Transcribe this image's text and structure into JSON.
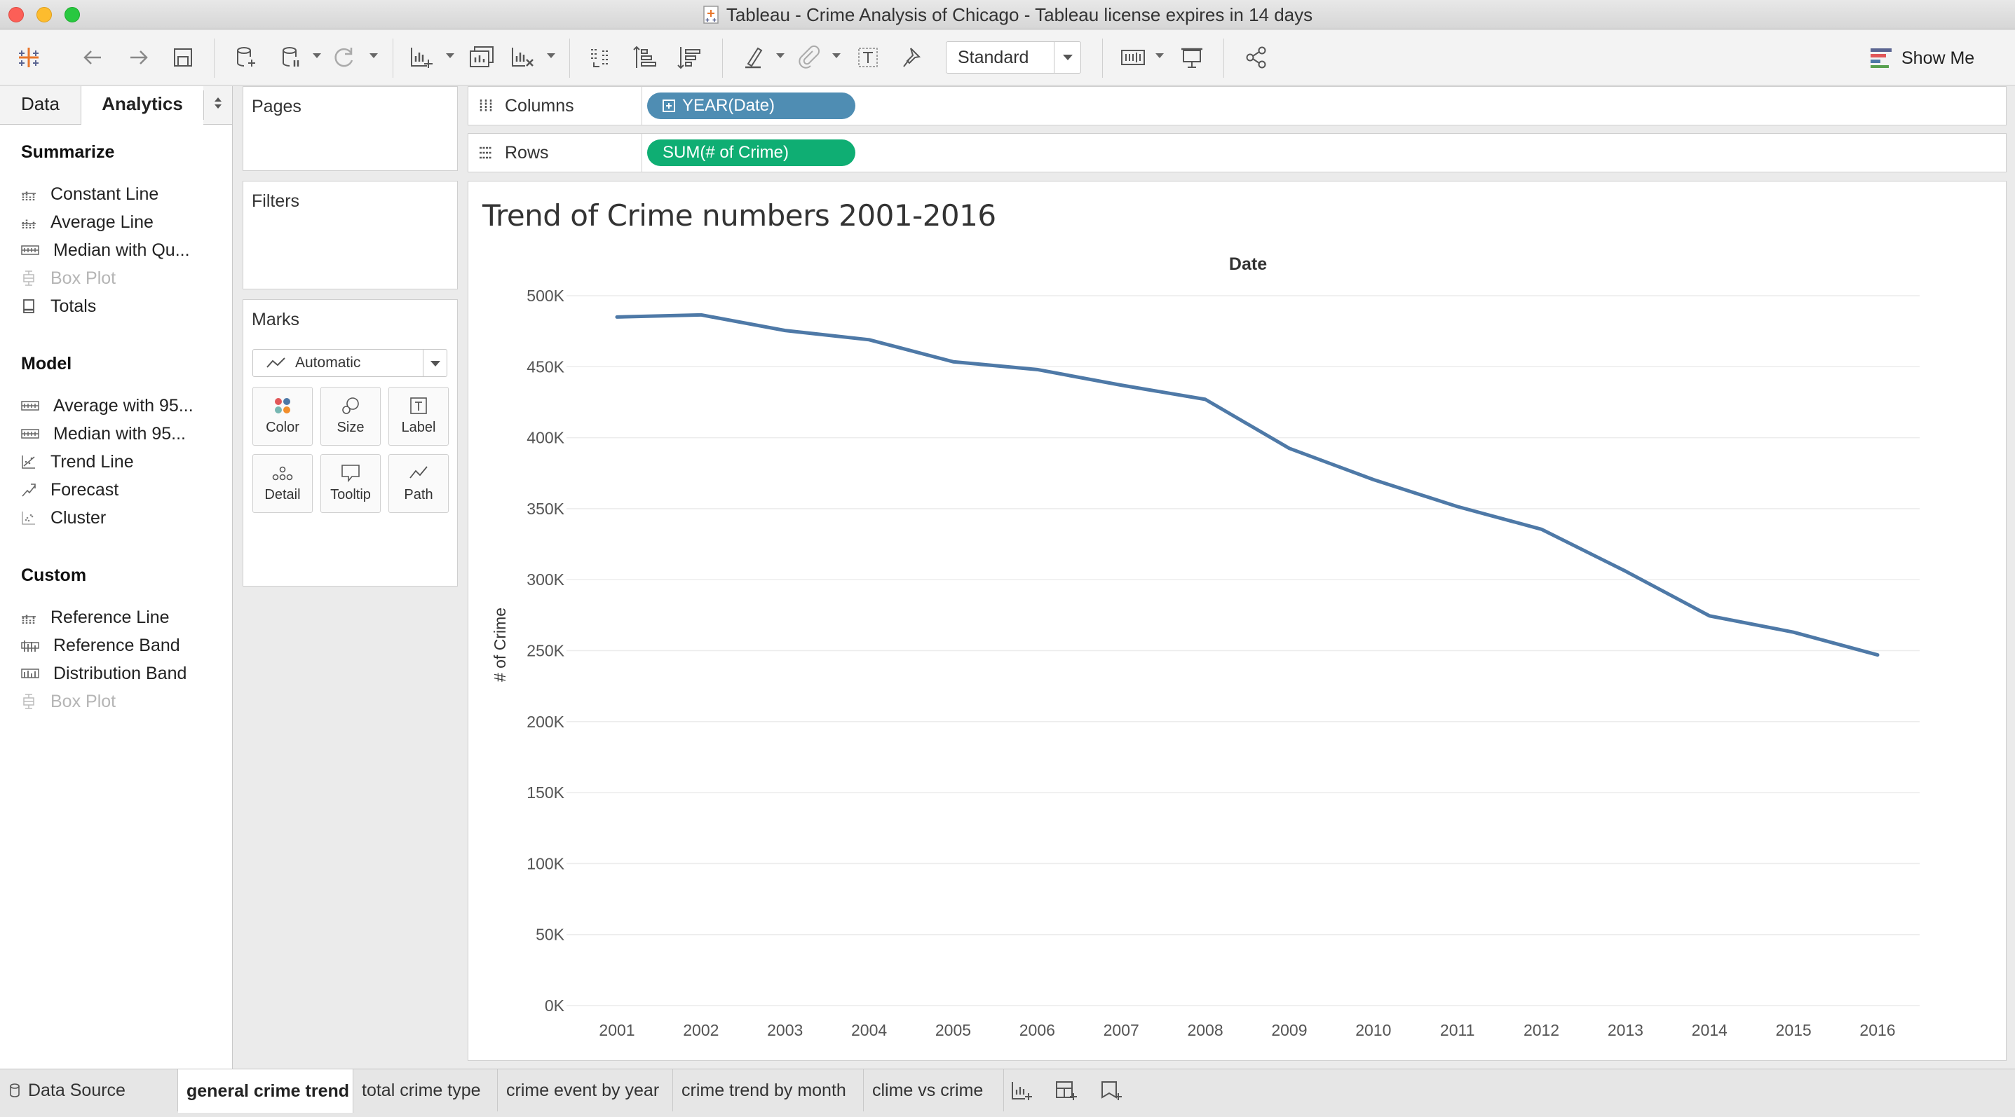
{
  "window": {
    "title": "Tableau - Crime Analysis of Chicago - Tableau license expires in 14 days"
  },
  "toolbar": {
    "icons": [
      "tableau-logo-icon",
      "back-icon",
      "forward-icon",
      "save-icon",
      "new-data-source-icon",
      "pause-updates-icon",
      "refresh-icon",
      "new-worksheet-icon",
      "duplicate-sheet-icon",
      "clear-sheet-icon",
      "swap-icon",
      "sort-ascending-icon",
      "sort-descending-icon",
      "highlight-icon",
      "group-icon",
      "show-labels-icon",
      "fix-axes-icon",
      "view-size-icon",
      "presentation-icon",
      "share-icon"
    ],
    "fit_select_value": "Standard",
    "show_me_label": "Show Me"
  },
  "left_panel": {
    "tabs": [
      "Data",
      "Analytics"
    ],
    "active_tab": "Analytics",
    "sections": [
      {
        "title": "Summarize",
        "items": [
          {
            "label": "Constant Line",
            "icon": "constant-line-icon",
            "enabled": true
          },
          {
            "label": "Average Line",
            "icon": "average-line-icon",
            "enabled": true
          },
          {
            "label": "Median with Qu...",
            "icon": "median-quartiles-icon",
            "enabled": true
          },
          {
            "label": "Box Plot",
            "icon": "box-plot-icon",
            "enabled": false
          },
          {
            "label": "Totals",
            "icon": "totals-icon",
            "enabled": true
          }
        ]
      },
      {
        "title": "Model",
        "items": [
          {
            "label": "Average with 95...",
            "icon": "average-ci-icon",
            "enabled": true
          },
          {
            "label": "Median with 95...",
            "icon": "median-ci-icon",
            "enabled": true
          },
          {
            "label": "Trend Line",
            "icon": "trend-line-icon",
            "enabled": true
          },
          {
            "label": "Forecast",
            "icon": "forecast-icon",
            "enabled": true
          },
          {
            "label": "Cluster",
            "icon": "cluster-icon",
            "enabled": true
          }
        ]
      },
      {
        "title": "Custom",
        "items": [
          {
            "label": "Reference Line",
            "icon": "reference-line-icon",
            "enabled": true
          },
          {
            "label": "Reference Band",
            "icon": "reference-band-icon",
            "enabled": true
          },
          {
            "label": "Distribution Band",
            "icon": "distribution-band-icon",
            "enabled": true
          },
          {
            "label": "Box Plot",
            "icon": "box-plot-icon",
            "enabled": false
          }
        ]
      }
    ]
  },
  "cards": {
    "pages": "Pages",
    "filters": "Filters",
    "marks": {
      "title": "Marks",
      "mark_type": "Automatic",
      "buttons": [
        "Color",
        "Size",
        "Label",
        "Detail",
        "Tooltip",
        "Path"
      ]
    }
  },
  "shelves": {
    "columns_label": "Columns",
    "columns_pill": "YEAR(Date)",
    "rows_label": "Rows",
    "rows_pill": "SUM(# of Crime)"
  },
  "viz": {
    "title": "Trend of Crime numbers 2001-2016"
  },
  "chart_data": {
    "type": "line",
    "title": "Trend of Crime numbers 2001-2016",
    "column_header": "Date",
    "xlabel": "",
    "ylabel": "# of Crime",
    "x": [
      2001,
      2002,
      2003,
      2004,
      2005,
      2006,
      2007,
      2008,
      2009,
      2010,
      2011,
      2012,
      2013,
      2014,
      2015,
      2016
    ],
    "y_tick_labels": [
      "0K",
      "50K",
      "100K",
      "150K",
      "200K",
      "250K",
      "300K",
      "350K",
      "400K",
      "450K",
      "500K"
    ],
    "ylim": [
      0,
      500000
    ],
    "grid": true,
    "series": [
      {
        "values": [
          485000,
          486500,
          475500,
          469000,
          453500,
          448000,
          437000,
          427000,
          392500,
          370500,
          351500,
          335500,
          306000,
          274500,
          263000,
          247000
        ],
        "color": "#4e79a7"
      }
    ]
  },
  "bottom_tabs": {
    "data_source": "Data Source",
    "sheets": [
      "general crime trend",
      "total crime type",
      "crime event by year",
      "crime trend by month",
      "clime vs crime"
    ],
    "active_sheet": "general crime trend",
    "action_icons": [
      "new-worksheet-icon",
      "new-dashboard-icon",
      "new-story-icon"
    ]
  }
}
